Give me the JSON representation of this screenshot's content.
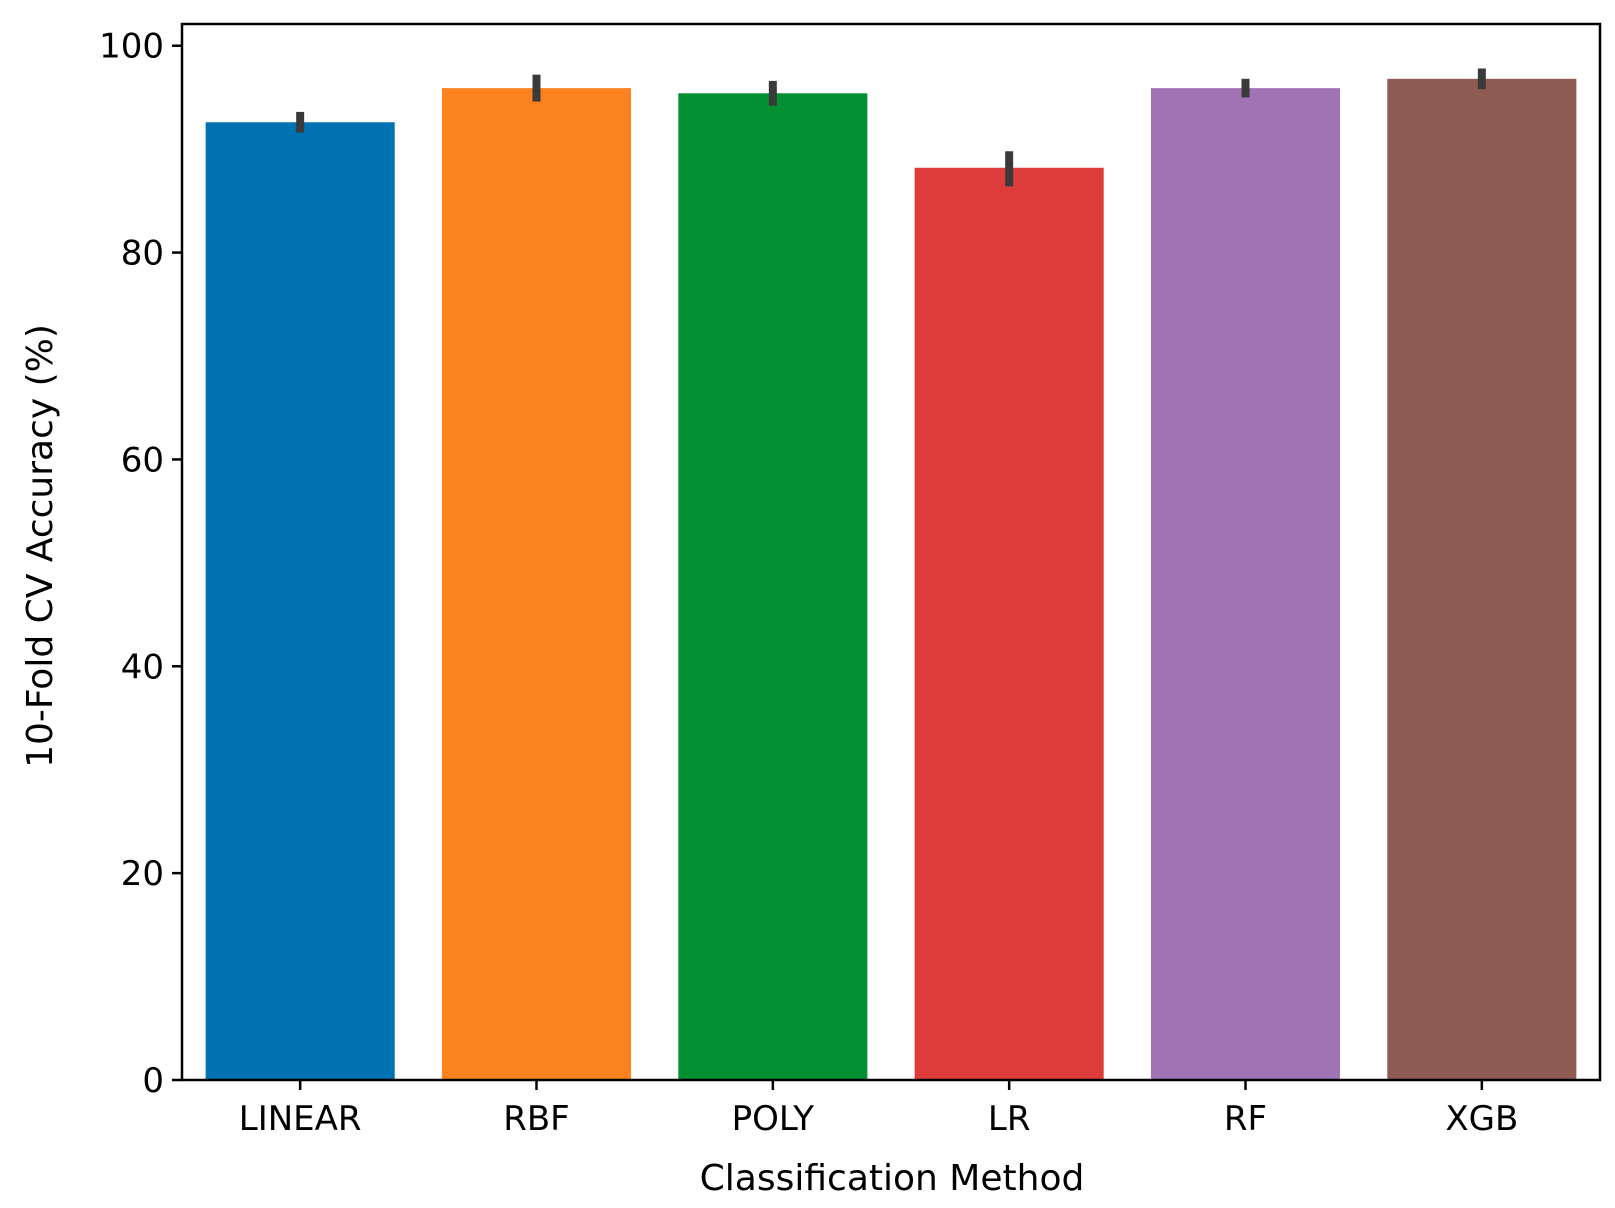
{
  "chart_data": {
    "type": "bar",
    "title": "",
    "xlabel": "Classification Method",
    "ylabel": "10-Fold CV Accuracy (%)",
    "ylim": [
      0,
      100
    ],
    "yticks": [
      0,
      20,
      40,
      60,
      80,
      100
    ],
    "grid": false,
    "categories": [
      "LINEAR",
      "RBF",
      "POLY",
      "LR",
      "RF",
      "XGB"
    ],
    "values": [
      92.6,
      95.9,
      95.4,
      88.2,
      95.9,
      96.8
    ],
    "error_low": [
      91.6,
      94.6,
      94.2,
      86.4,
      95.0,
      95.8
    ],
    "error_high": [
      93.6,
      97.2,
      96.6,
      89.8,
      96.8,
      97.8
    ],
    "colors": [
      "#0173b2",
      "#fb821e",
      "#029033",
      "#de3b3b",
      "#a074b4",
      "#8e5a51"
    ],
    "error_bar_color": "#3a3a3a"
  }
}
